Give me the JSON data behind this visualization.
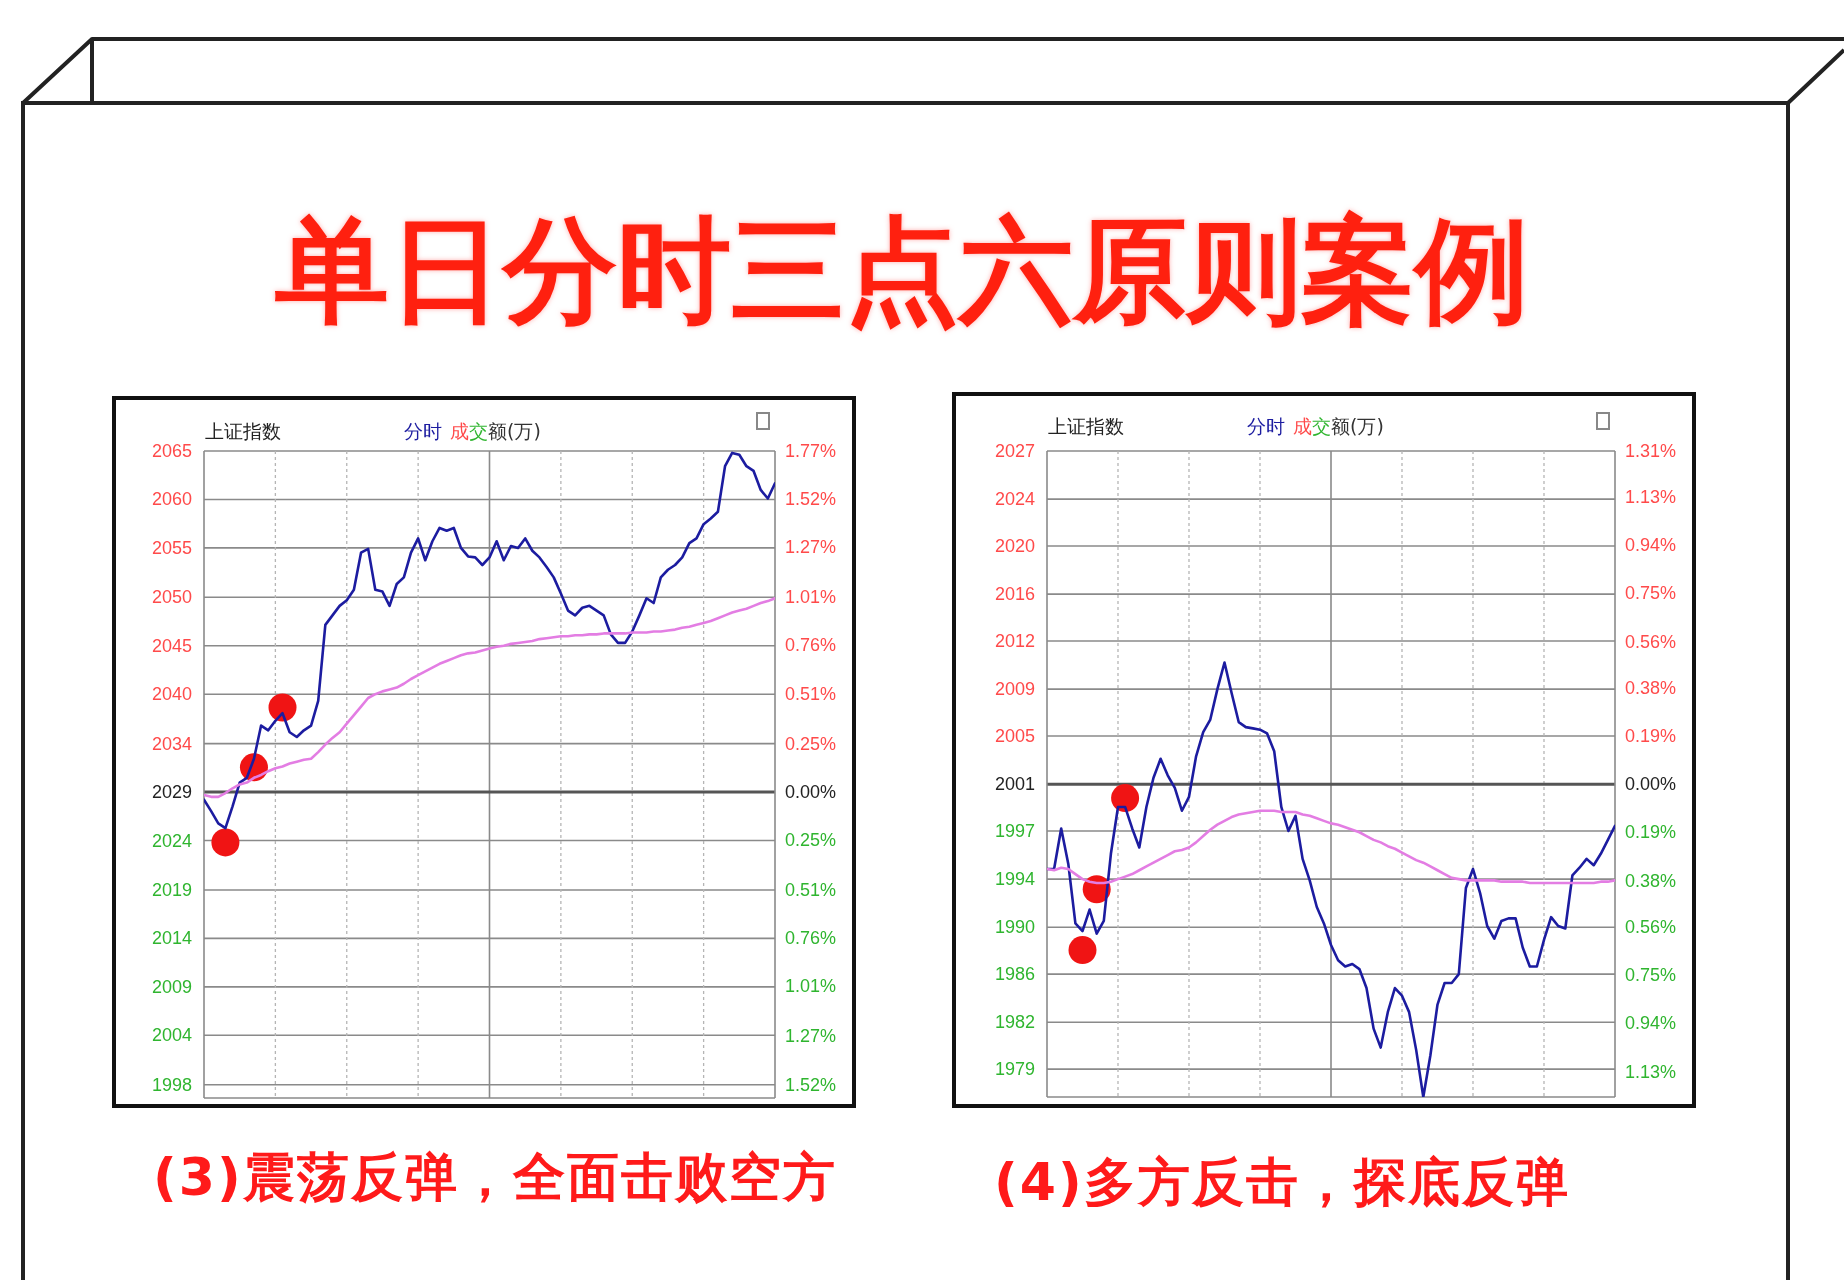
{
  "chart_data": [
    {
      "type": "other",
      "title": "单日分时三点六原则案例"
    },
    {
      "type": "line",
      "title": "上证指数",
      "categories": [
        null,
        null,
        null,
        null,
        null,
        null,
        null,
        null,
        null,
        null,
        null,
        null,
        null,
        null,
        null,
        null,
        null,
        null,
        null,
        null,
        null,
        null,
        null,
        null,
        null,
        null,
        null,
        null,
        null,
        null,
        null,
        null,
        null,
        null,
        null,
        null,
        null,
        null,
        null,
        null,
        null,
        null,
        null,
        null,
        null,
        null,
        null,
        null,
        null,
        null,
        null,
        null,
        null,
        null,
        null,
        null,
        null,
        null,
        null,
        null,
        null,
        null,
        null,
        null,
        null,
        null,
        null,
        null,
        null,
        null,
        null,
        null,
        null,
        null,
        null,
        null,
        null,
        null,
        null,
        null,
        null
      ],
      "series": [
        {
          "name": "分时",
          "color": "#1c1ca0",
          "values": [
            2028.5,
            2027.3,
            2026.0,
            2025.5,
            2027.8,
            2030.3,
            2030.8,
            2032.8,
            2036.3,
            2035.8,
            2036.8,
            2037.6,
            2035.6,
            2035.1,
            2035.8,
            2036.3,
            2038.9,
            2046.9,
            2047.9,
            2048.9,
            2049.5,
            2050.6,
            2054.5,
            2054.9,
            2050.6,
            2050.4,
            2048.9,
            2051.2,
            2051.9,
            2054.5,
            2056.0,
            2053.7,
            2055.7,
            2057.1,
            2056.8,
            2057.1,
            2055.0,
            2054.1,
            2054.0,
            2053.2,
            2054.0,
            2055.7,
            2053.7,
            2055.2,
            2055.0,
            2056.0,
            2054.7,
            2054.0,
            2053.0,
            2051.9,
            2050.2,
            2048.4,
            2047.9,
            2048.7,
            2048.9,
            2048.4,
            2047.9,
            2045.9,
            2045.0,
            2045.0,
            2046.2,
            2047.9,
            2049.7,
            2049.2,
            2051.9,
            2052.7,
            2053.2,
            2054.0,
            2055.5,
            2056.0,
            2057.5,
            2058.1,
            2058.8,
            2063.6,
            2065.0,
            2064.8,
            2063.6,
            2063.1,
            2061.1,
            2060.2,
            2061.8
          ]
        },
        {
          "color": "#e37de3",
          "values": [
            2029.0,
            2028.8,
            2028.8,
            2029.2,
            2029.7,
            2030.1,
            2030.3,
            2030.8,
            2031.1,
            2031.5,
            2031.8,
            2032.0,
            2032.3,
            2032.5,
            2032.7,
            2032.8,
            2033.5,
            2034.3,
            2035.0,
            2035.6,
            2036.5,
            2037.4,
            2038.3,
            2039.2,
            2039.6,
            2039.9,
            2040.1,
            2040.3,
            2040.7,
            2041.2,
            2041.6,
            2042.0,
            2042.4,
            2042.8,
            2043.1,
            2043.4,
            2043.7,
            2043.9,
            2044.0,
            2044.2,
            2044.4,
            2044.6,
            2044.7,
            2044.9,
            2045.0,
            2045.1,
            2045.2,
            2045.4,
            2045.5,
            2045.6,
            2045.7,
            2045.7,
            2045.8,
            2045.8,
            2045.9,
            2045.9,
            2046.0,
            2046.0,
            2046.0,
            2046.0,
            2046.1,
            2046.1,
            2046.1,
            2046.2,
            2046.2,
            2046.3,
            2046.4,
            2046.6,
            2046.7,
            2046.9,
            2047.1,
            2047.3,
            2047.6,
            2047.9,
            2048.2,
            2048.4,
            2048.6,
            2048.9,
            2049.2,
            2049.4,
            2049.7
          ]
        },
        {
          "type": "scatter",
          "marker": "circle",
          "color": "#f01414",
          "values": [
            null,
            null,
            null,
            2024.0,
            null,
            null,
            null,
            2031.9,
            null,
            null,
            null,
            2038.2,
            null,
            null,
            null,
            null,
            null,
            null,
            null,
            null,
            null,
            null,
            null,
            null,
            null,
            null,
            null,
            null,
            null,
            null,
            null,
            null,
            null,
            null,
            null,
            null,
            null,
            null,
            null,
            null,
            null,
            null,
            null,
            null,
            null,
            null,
            null,
            null,
            null,
            null,
            null,
            null,
            null,
            null,
            null,
            null,
            null,
            null,
            null,
            null,
            null,
            null,
            null,
            null,
            null,
            null,
            null,
            null,
            null,
            null,
            null,
            null,
            null,
            null,
            null,
            null,
            null,
            null,
            null,
            null,
            null
          ]
        }
      ],
      "ylim": [
        1997.1,
        2065.2
      ],
      "yticks": [
        {
          "value": 2065.2,
          "label": "2065"
        },
        {
          "value": 2060.1,
          "label": "2060"
        },
        {
          "value": 2055.0,
          "label": "2055"
        },
        {
          "value": 2049.8,
          "label": "2050"
        },
        {
          "value": 2044.7,
          "label": "2045"
        },
        {
          "value": 2039.6,
          "label": "2040"
        },
        {
          "value": 2034.4,
          "label": "2034"
        },
        {
          "value": 2029.3,
          "label": "2029"
        },
        {
          "value": 2024.2,
          "label": "2024"
        },
        {
          "value": 2019.0,
          "label": "2019"
        },
        {
          "value": 2013.9,
          "label": "2014"
        },
        {
          "value": 2008.8,
          "label": "2009"
        },
        {
          "value": 2003.7,
          "label": "2004"
        },
        {
          "value": 1998.5,
          "label": "1998"
        }
      ],
      "y2lim": [
        -1.59,
        1.77
      ],
      "y2ticks": [
        {
          "value": 1.77,
          "label": "1.77%"
        },
        {
          "value": 1.52,
          "label": "1.52%"
        },
        {
          "value": 1.27,
          "label": "1.27%"
        },
        {
          "value": 1.01,
          "label": "1.01%"
        },
        {
          "value": 0.76,
          "label": "0.76%"
        },
        {
          "value": 0.51,
          "label": "0.51%"
        },
        {
          "value": 0.25,
          "label": "0.25%"
        },
        {
          "value": 0,
          "label": "0.00%"
        },
        {
          "value": -0.25,
          "label": "0.25%"
        },
        {
          "value": -0.51,
          "label": "0.51%"
        },
        {
          "value": -0.76,
          "label": "0.76%"
        },
        {
          "value": -1.01,
          "label": "1.01%"
        },
        {
          "value": -1.27,
          "label": "1.27%"
        },
        {
          "value": -1.52,
          "label": "1.52%"
        }
      ],
      "grid": true,
      "legend": "top left",
      "ref_lines": [
        {
          "axis": "y",
          "value": 2029.3,
          "color": "#555555"
        }
      ],
      "annotations": [
        "成交额(万)",
        "(3)震荡反弹，全面击败空方"
      ]
    },
    {
      "type": "line",
      "title": "上证指数",
      "categories": [
        null,
        null,
        null,
        null,
        null,
        null,
        null,
        null,
        null,
        null,
        null,
        null,
        null,
        null,
        null,
        null,
        null,
        null,
        null,
        null,
        null,
        null,
        null,
        null,
        null,
        null,
        null,
        null,
        null,
        null,
        null,
        null,
        null,
        null,
        null,
        null,
        null,
        null,
        null,
        null,
        null,
        null,
        null,
        null,
        null,
        null,
        null,
        null,
        null,
        null,
        null,
        null,
        null,
        null,
        null,
        null,
        null,
        null,
        null,
        null,
        null,
        null,
        null,
        null,
        null,
        null,
        null,
        null,
        null,
        null,
        null,
        null,
        null,
        null,
        null,
        null,
        null,
        null,
        null,
        null,
        null
      ],
      "series": [
        {
          "name": "分时",
          "color": "#1c1ca0",
          "values": [
            1994.4,
            1994.4,
            1997.6,
            1994.8,
            1990.1,
            1989.5,
            1991.2,
            1989.3,
            1990.3,
            1995.6,
            1999.3,
            1999.3,
            1997.6,
            1996.1,
            1999.3,
            2001.6,
            2003.1,
            2001.8,
            2000.8,
            1999.0,
            2000.1,
            2003.3,
            2005.2,
            2006.2,
            2008.6,
            2010.7,
            2008.3,
            2006.0,
            2005.6,
            2005.5,
            2005.4,
            2005.1,
            2003.7,
            1999.3,
            1997.4,
            1998.6,
            1995.2,
            1993.5,
            1991.4,
            1990.1,
            1988.4,
            1987.2,
            1986.7,
            1986.9,
            1986.5,
            1985.0,
            1981.8,
            1980.3,
            1983.1,
            1985.0,
            1984.4,
            1983.1,
            1980.1,
            1976.4,
            1979.7,
            1983.7,
            1985.4,
            1985.4,
            1986.1,
            1992.9,
            1994.4,
            1992.5,
            1989.9,
            1988.9,
            1990.3,
            1990.5,
            1990.5,
            1988.2,
            1986.7,
            1986.7,
            1988.8,
            1990.6,
            1989.9,
            1989.7,
            1993.9,
            1994.5,
            1995.2,
            1994.7,
            1995.6,
            1996.7,
            1997.8
          ]
        },
        {
          "color": "#e37de3",
          "values": [
            1994.4,
            1994.3,
            1994.5,
            1994.4,
            1994.0,
            1993.6,
            1993.4,
            1993.3,
            1993.3,
            1993.4,
            1993.6,
            1993.8,
            1994.0,
            1994.3,
            1994.6,
            1994.9,
            1995.2,
            1995.5,
            1995.8,
            1995.9,
            1996.1,
            1996.5,
            1997.0,
            1997.5,
            1997.9,
            1998.2,
            1998.5,
            1998.7,
            1998.8,
            1998.9,
            1999.0,
            1999.0,
            1999.0,
            1998.9,
            1998.9,
            1998.9,
            1998.7,
            1998.6,
            1998.4,
            1998.2,
            1998.0,
            1997.9,
            1997.7,
            1997.5,
            1997.3,
            1997.0,
            1996.7,
            1996.5,
            1996.2,
            1996.0,
            1995.7,
            1995.4,
            1995.1,
            1994.9,
            1994.6,
            1994.3,
            1994.0,
            1993.7,
            1993.6,
            1993.5,
            1993.5,
            1993.5,
            1993.5,
            1993.5,
            1993.4,
            1993.4,
            1993.4,
            1993.4,
            1993.3,
            1993.3,
            1993.3,
            1993.3,
            1993.3,
            1993.3,
            1993.3,
            1993.3,
            1993.3,
            1993.3,
            1993.4,
            1993.4,
            1993.5
          ]
        },
        {
          "type": "scatter",
          "marker": "circle",
          "color": "#f01414",
          "values": [
            null,
            null,
            null,
            null,
            null,
            1988.0,
            null,
            1992.8,
            null,
            null,
            null,
            2000.0,
            null,
            null,
            null,
            null,
            null,
            null,
            null,
            null,
            null,
            null,
            null,
            null,
            null,
            null,
            null,
            null,
            null,
            null,
            null,
            null,
            null,
            null,
            null,
            null,
            null,
            null,
            null,
            null,
            null,
            null,
            null,
            null,
            null,
            null,
            null,
            null,
            null,
            null,
            null,
            null,
            null,
            null,
            null,
            null,
            null,
            null,
            null,
            null,
            null,
            null,
            null,
            null,
            null,
            null,
            null,
            null,
            null,
            null,
            null,
            null,
            null,
            null,
            null,
            null,
            null,
            null,
            null,
            null,
            null
          ]
        }
      ],
      "ylim": [
        1976.4,
        2027.4
      ],
      "yticks": [
        {
          "value": 2027.4,
          "label": "2027"
        },
        {
          "value": 2023.6,
          "label": "2024"
        },
        {
          "value": 2019.9,
          "label": "2020"
        },
        {
          "value": 2016.1,
          "label": "2016"
        },
        {
          "value": 2012.4,
          "label": "2012"
        },
        {
          "value": 2008.6,
          "label": "2009"
        },
        {
          "value": 2004.9,
          "label": "2005"
        },
        {
          "value": 2001.1,
          "label": "2001"
        },
        {
          "value": 1997.4,
          "label": "1997"
        },
        {
          "value": 1993.6,
          "label": "1994"
        },
        {
          "value": 1989.8,
          "label": "1990"
        },
        {
          "value": 1986.1,
          "label": "1986"
        },
        {
          "value": 1982.3,
          "label": "1982"
        },
        {
          "value": 1978.6,
          "label": "1979"
        }
      ],
      "y2lim": [
        -1.23,
        1.31
      ],
      "y2ticks": [
        {
          "value": 1.31,
          "label": "1.31%"
        },
        {
          "value": 1.13,
          "label": "1.13%"
        },
        {
          "value": 0.94,
          "label": "0.94%"
        },
        {
          "value": 0.75,
          "label": "0.75%"
        },
        {
          "value": 0.56,
          "label": "0.56%"
        },
        {
          "value": 0.38,
          "label": "0.38%"
        },
        {
          "value": 0.19,
          "label": "0.19%"
        },
        {
          "value": 0,
          "label": "0.00%"
        },
        {
          "value": -0.19,
          "label": "0.19%"
        },
        {
          "value": -0.38,
          "label": "0.38%"
        },
        {
          "value": -0.56,
          "label": "0.56%"
        },
        {
          "value": -0.75,
          "label": "0.75%"
        },
        {
          "value": -0.94,
          "label": "0.94%"
        },
        {
          "value": -1.13,
          "label": "1.13%"
        }
      ],
      "grid": true,
      "legend": "top left",
      "ref_lines": [
        {
          "axis": "y",
          "value": 2001.1,
          "color": "#555555"
        }
      ],
      "annotations": [
        "成交额(万)",
        "(4)多方反击，探底反弹"
      ]
    }
  ]
}
